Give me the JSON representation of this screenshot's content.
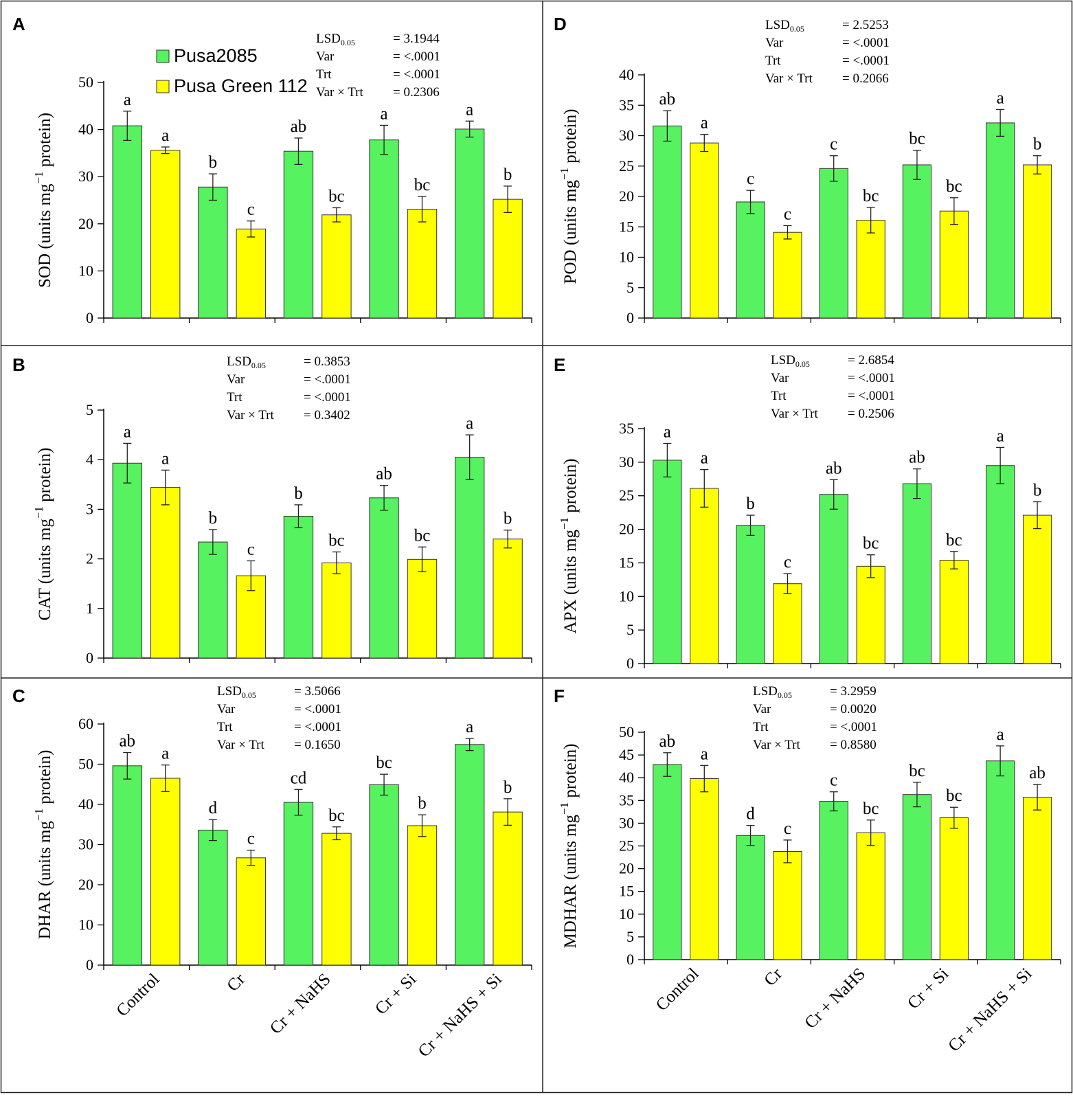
{
  "categories": [
    "Control",
    "Cr",
    "Cr + NaHS",
    "Cr + Si",
    "Cr + NaHS + Si"
  ],
  "legend": [
    {
      "name": "Pusa2085",
      "color": "#57f25f"
    },
    {
      "name": "Pusa Green 112",
      "color": "#ffff00"
    }
  ],
  "chart_data": [
    {
      "panel": "A",
      "type": "bar",
      "ylabel_main": "SOD (units mg",
      "ylabel_exp": "−1",
      "ylabel_tail": " protein)",
      "ylim": [
        0,
        50
      ],
      "yticks": [
        0,
        10,
        20,
        30,
        40,
        50
      ],
      "stats": [
        {
          "label": "LSD",
          "sub": "0.05",
          "value": "= 3.1944"
        },
        {
          "label": "Var",
          "sub": "",
          "value": "= <.0001"
        },
        {
          "label": "Trt",
          "sub": "",
          "value": "= <.0001"
        },
        {
          "label": "Var × Trt",
          "sub": "",
          "value": "= 0.2306"
        }
      ],
      "series": [
        {
          "name": "Pusa2085",
          "values": [
            40.8,
            27.8,
            35.4,
            37.8,
            40.1
          ],
          "errors": [
            3.1,
            2.8,
            2.8,
            3.1,
            1.7
          ],
          "letters": [
            "a",
            "b",
            "ab",
            "a",
            "a"
          ]
        },
        {
          "name": "Pusa Green 112",
          "values": [
            35.6,
            18.9,
            21.9,
            23.1,
            25.2
          ],
          "errors": [
            0.7,
            1.7,
            1.5,
            2.7,
            2.8
          ],
          "letters": [
            "a",
            "c",
            "bc",
            "bc",
            "b"
          ]
        }
      ]
    },
    {
      "panel": "B",
      "type": "bar",
      "ylabel_main": "CAT (units mg",
      "ylabel_exp": "−1",
      "ylabel_tail": " protein)",
      "ylim": [
        0,
        5
      ],
      "yticks": [
        0,
        1,
        2,
        3,
        4,
        5
      ],
      "stats": [
        {
          "label": "LSD",
          "sub": "0.05",
          "value": "= 0.3853"
        },
        {
          "label": "Var",
          "sub": "",
          "value": "= <.0001"
        },
        {
          "label": "Trt",
          "sub": "",
          "value": "= <.0001"
        },
        {
          "label": "Var × Trt",
          "sub": "",
          "value": "= 0.3402"
        }
      ],
      "series": [
        {
          "name": "Pusa2085",
          "values": [
            3.93,
            2.34,
            2.86,
            3.23,
            4.05
          ],
          "errors": [
            0.4,
            0.25,
            0.23,
            0.25,
            0.45
          ],
          "letters": [
            "a",
            "b",
            "b",
            "ab",
            "a"
          ]
        },
        {
          "name": "Pusa Green 112",
          "values": [
            3.44,
            1.66,
            1.92,
            1.99,
            2.4
          ],
          "errors": [
            0.35,
            0.3,
            0.22,
            0.25,
            0.18
          ],
          "letters": [
            "a",
            "c",
            "bc",
            "bc",
            "b"
          ]
        }
      ]
    },
    {
      "panel": "C",
      "type": "bar",
      "ylabel_main": "DHAR (units mg",
      "ylabel_exp": "−1",
      "ylabel_tail": " protein)",
      "ylim": [
        0,
        60
      ],
      "yticks": [
        0,
        10,
        20,
        30,
        40,
        50,
        60
      ],
      "stats": [
        {
          "label": "LSD",
          "sub": "0.05",
          "value": "= 3.5066"
        },
        {
          "label": "Var",
          "sub": "",
          "value": "= <.0001"
        },
        {
          "label": "Trt",
          "sub": "",
          "value": "= <.0001"
        },
        {
          "label": "Var × Trt",
          "sub": "",
          "value": "= 0.1650"
        }
      ],
      "series": [
        {
          "name": "Pusa2085",
          "values": [
            49.6,
            33.6,
            40.5,
            44.9,
            54.9
          ],
          "errors": [
            3.3,
            2.6,
            3.2,
            2.6,
            1.5
          ],
          "letters": [
            "ab",
            "d",
            "cd",
            "bc",
            "a"
          ]
        },
        {
          "name": "Pusa Green 112",
          "values": [
            46.5,
            26.7,
            32.8,
            34.7,
            38.1
          ],
          "errors": [
            3.3,
            1.9,
            1.6,
            2.7,
            3.3
          ],
          "letters": [
            "a",
            "c",
            "bc",
            "b",
            "b"
          ]
        }
      ]
    },
    {
      "panel": "D",
      "type": "bar",
      "ylabel_main": "POD (units mg",
      "ylabel_exp": "−1",
      "ylabel_tail": " protein)",
      "ylim": [
        0,
        40
      ],
      "yticks": [
        0,
        5,
        10,
        15,
        20,
        25,
        30,
        35,
        40
      ],
      "stats": [
        {
          "label": "LSD",
          "sub": "0.05",
          "value": "= 2.5253"
        },
        {
          "label": "Var",
          "sub": "",
          "value": "= <.0001"
        },
        {
          "label": "Trt",
          "sub": "",
          "value": "= <.0001"
        },
        {
          "label": "Var × Trt",
          "sub": "",
          "value": "= 0.2066"
        }
      ],
      "series": [
        {
          "name": "Pusa2085",
          "values": [
            31.6,
            19.1,
            24.6,
            25.2,
            32.1
          ],
          "errors": [
            2.5,
            1.9,
            2.1,
            2.4,
            2.2
          ],
          "letters": [
            "ab",
            "c",
            "c",
            "bc",
            "a"
          ]
        },
        {
          "name": "Pusa Green 112",
          "values": [
            28.8,
            14.1,
            16.1,
            17.6,
            25.2
          ],
          "errors": [
            1.4,
            1.1,
            2.1,
            2.2,
            1.5
          ],
          "letters": [
            "a",
            "c",
            "bc",
            "bc",
            "b"
          ]
        }
      ]
    },
    {
      "panel": "E",
      "type": "bar",
      "ylabel_main": "APX (units mg",
      "ylabel_exp": "−1",
      "ylabel_tail": " protein)",
      "ylim": [
        0,
        35
      ],
      "yticks": [
        0,
        5,
        10,
        15,
        20,
        25,
        30,
        35
      ],
      "stats": [
        {
          "label": "LSD",
          "sub": "0.05",
          "value": "= 2.6854"
        },
        {
          "label": "Var",
          "sub": "",
          "value": "= <.0001"
        },
        {
          "label": "Trt",
          "sub": "",
          "value": "= <.0001"
        },
        {
          "label": "Var × Trt",
          "sub": "",
          "value": "= 0.2506"
        }
      ],
      "series": [
        {
          "name": "Pusa2085",
          "values": [
            30.3,
            20.6,
            25.2,
            26.8,
            29.5
          ],
          "errors": [
            2.5,
            1.5,
            2.2,
            2.2,
            2.7
          ],
          "letters": [
            "a",
            "b",
            "ab",
            "ab",
            "a"
          ]
        },
        {
          "name": "Pusa Green 112",
          "values": [
            26.1,
            11.9,
            14.5,
            15.4,
            22.1
          ],
          "errors": [
            2.8,
            1.5,
            1.7,
            1.3,
            2.0
          ],
          "letters": [
            "a",
            "c",
            "bc",
            "bc",
            "b"
          ]
        }
      ]
    },
    {
      "panel": "F",
      "type": "bar",
      "ylabel_main": "MDHAR (units mg",
      "ylabel_exp": "−1",
      "ylabel_tail": " protein)",
      "ylim": [
        0,
        50
      ],
      "yticks": [
        0,
        5,
        10,
        15,
        20,
        25,
        30,
        35,
        40,
        45,
        50
      ],
      "stats": [
        {
          "label": "LSD",
          "sub": "0.05",
          "value": "= 3.2959"
        },
        {
          "label": "Var",
          "sub": "",
          "value": "= 0.0020"
        },
        {
          "label": "Trt",
          "sub": "",
          "value": "= <.0001"
        },
        {
          "label": "Var × Trt",
          "sub": "",
          "value": "= 0.8580"
        }
      ],
      "series": [
        {
          "name": "Pusa2085",
          "values": [
            42.9,
            27.3,
            34.8,
            36.3,
            43.7
          ],
          "errors": [
            2.6,
            2.2,
            2.1,
            2.7,
            3.3
          ],
          "letters": [
            "ab",
            "d",
            "c",
            "bc",
            "a"
          ]
        },
        {
          "name": "Pusa Green 112",
          "values": [
            39.8,
            23.8,
            27.9,
            31.2,
            35.7
          ],
          "errors": [
            2.9,
            2.5,
            2.8,
            2.3,
            2.8
          ],
          "letters": [
            "a",
            "c",
            "bc",
            "bc",
            "ab"
          ]
        }
      ]
    }
  ]
}
